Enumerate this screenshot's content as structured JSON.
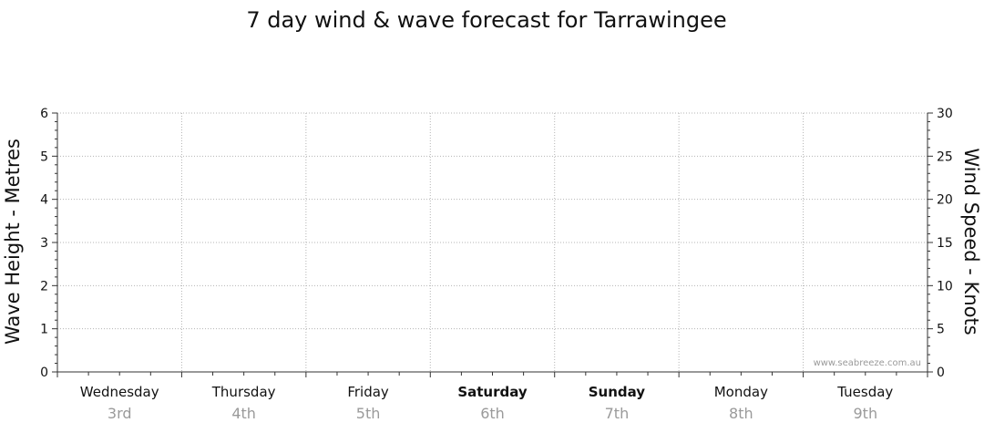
{
  "chart_data": {
    "type": "line",
    "title": "7 day wind & wave forecast for Tarrawingee",
    "ylabel_left": "Wave Height - Metres",
    "ylabel_right": "Wind Speed - Knots",
    "ylim_left": [
      0,
      6
    ],
    "ylim_right": [
      0,
      30
    ],
    "yticks_left": [
      0,
      1,
      2,
      3,
      4,
      5,
      6
    ],
    "yticks_right": [
      0,
      5,
      10,
      15,
      20,
      25,
      30
    ],
    "grid": true,
    "days": [
      {
        "name": "Wednesday",
        "date": "3rd",
        "weekend": false
      },
      {
        "name": "Thursday",
        "date": "4th",
        "weekend": false
      },
      {
        "name": "Friday",
        "date": "5th",
        "weekend": false
      },
      {
        "name": "Saturday",
        "date": "6th",
        "weekend": true
      },
      {
        "name": "Sunday",
        "date": "7th",
        "weekend": true
      },
      {
        "name": "Monday",
        "date": "8th",
        "weekend": false
      },
      {
        "name": "Tuesday",
        "date": "9th",
        "weekend": false
      }
    ],
    "series": []
  },
  "watermark": "www.seabreeze.com.au"
}
